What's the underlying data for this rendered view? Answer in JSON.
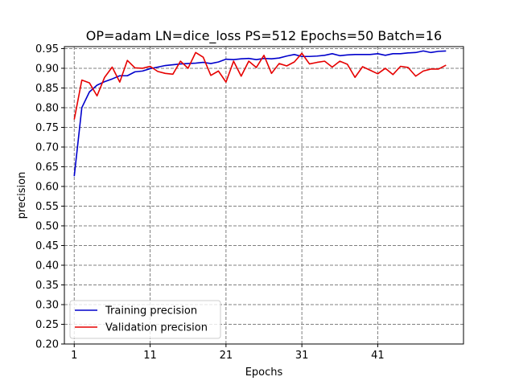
{
  "chart_data": {
    "type": "line",
    "title": "OP=adam LN=dice_loss PS=512 Epochs=50 Batch=16",
    "xlabel": "Epochs",
    "ylabel": "precision",
    "xlim": [
      -0.3,
      52.3
    ],
    "ylim": [
      0.2,
      0.955
    ],
    "x_ticks": [
      1,
      11,
      21,
      31,
      41
    ],
    "y_ticks": [
      0.2,
      0.25,
      0.3,
      0.35,
      0.4,
      0.45,
      0.5,
      0.55,
      0.6,
      0.65,
      0.7,
      0.75,
      0.8,
      0.85,
      0.9,
      0.95
    ],
    "grid": true,
    "grid_style": "dashed",
    "legend_position": "lower-left",
    "x": [
      1,
      2,
      3,
      4,
      5,
      6,
      7,
      8,
      9,
      10,
      11,
      12,
      13,
      14,
      15,
      16,
      17,
      18,
      19,
      20,
      21,
      22,
      23,
      24,
      25,
      26,
      27,
      28,
      29,
      30,
      31,
      32,
      33,
      34,
      35,
      36,
      37,
      38,
      39,
      40,
      41,
      42,
      43,
      44,
      45,
      46,
      47,
      48,
      49,
      50
    ],
    "series": [
      {
        "name": "Training precision",
        "color": "#0000cc",
        "values": [
          0.626,
          0.8,
          0.84,
          0.857,
          0.866,
          0.873,
          0.881,
          0.881,
          0.891,
          0.893,
          0.899,
          0.903,
          0.907,
          0.909,
          0.911,
          0.912,
          0.913,
          0.915,
          0.912,
          0.916,
          0.923,
          0.922,
          0.924,
          0.925,
          0.922,
          0.925,
          0.924,
          0.926,
          0.931,
          0.935,
          0.93,
          0.93,
          0.931,
          0.933,
          0.937,
          0.932,
          0.934,
          0.935,
          0.935,
          0.935,
          0.937,
          0.933,
          0.937,
          0.937,
          0.939,
          0.94,
          0.944,
          0.94,
          0.943,
          0.944
        ]
      },
      {
        "name": "Validation precision",
        "color": "#e60000",
        "values": [
          0.77,
          0.87,
          0.863,
          0.83,
          0.877,
          0.903,
          0.865,
          0.92,
          0.901,
          0.9,
          0.905,
          0.892,
          0.887,
          0.885,
          0.918,
          0.9,
          0.94,
          0.928,
          0.882,
          0.893,
          0.865,
          0.918,
          0.88,
          0.918,
          0.902,
          0.933,
          0.887,
          0.912,
          0.906,
          0.916,
          0.938,
          0.911,
          0.915,
          0.918,
          0.903,
          0.918,
          0.91,
          0.877,
          0.904,
          0.895,
          0.886,
          0.9,
          0.884,
          0.905,
          0.902,
          0.88,
          0.893,
          0.898,
          0.898,
          0.908
        ]
      }
    ]
  }
}
